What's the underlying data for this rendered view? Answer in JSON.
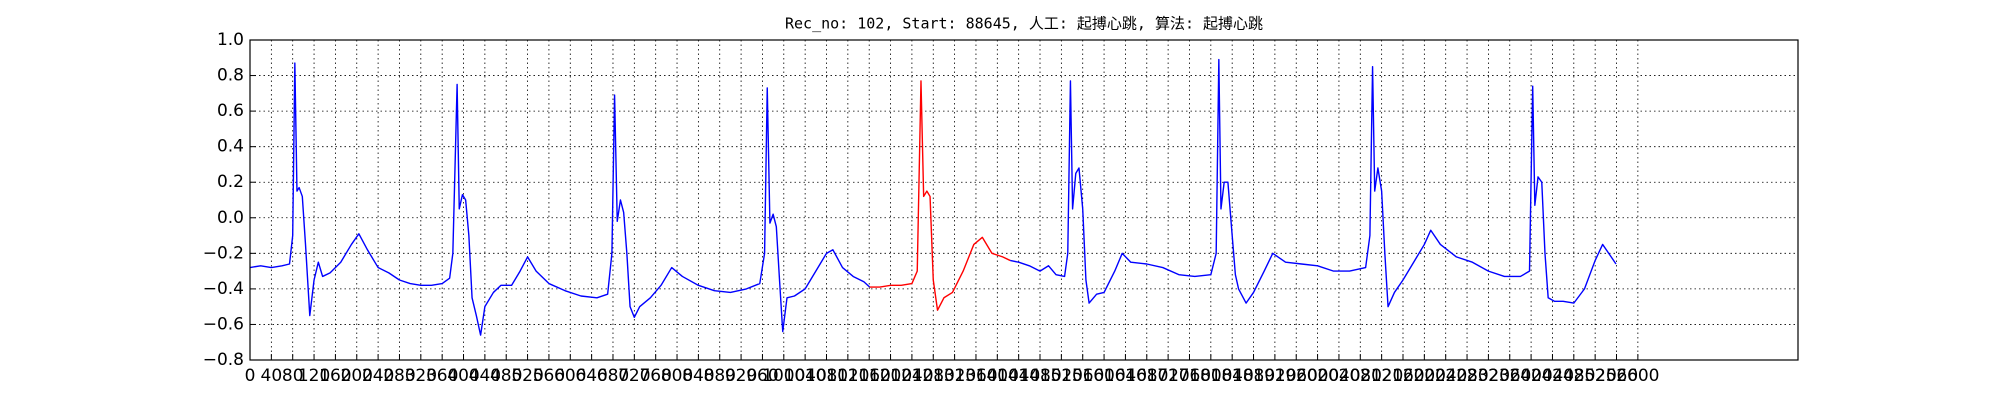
{
  "chart_data": {
    "type": "line",
    "title": "Rec_no: 102, Start: 88645, 人工: 起搏心跳, 算法: 起搏心跳",
    "xlim": [
      0,
      2900
    ],
    "ylim": [
      -0.8,
      1.0
    ],
    "xticks": [
      0,
      40,
      80,
      120,
      160,
      200,
      240,
      280,
      320,
      360,
      400,
      440,
      480,
      520,
      560,
      600,
      640,
      680,
      720,
      760,
      800,
      840,
      880,
      920,
      960,
      1000,
      1040,
      1080,
      1120,
      1160,
      1200,
      1240,
      1280,
      1320,
      1360,
      1400,
      1440,
      1480,
      1520,
      1560,
      1600,
      1640,
      1680,
      1720,
      1760,
      1800,
      1840,
      1880,
      1920,
      1960,
      2000,
      2040,
      2080,
      2120,
      2160,
      2200,
      2240,
      2280,
      2320,
      2360,
      2400,
      2440,
      2480,
      2520,
      2560,
      2600
    ],
    "yticks": [
      {
        "value": -0.8,
        "label": "−0.8"
      },
      {
        "value": -0.6,
        "label": "−0.6"
      },
      {
        "value": -0.4,
        "label": "−0.4"
      },
      {
        "value": -0.2,
        "label": "−0.2"
      },
      {
        "value": 0,
        "label": "0.0"
      },
      {
        "value": 0.2,
        "label": "0.2"
      },
      {
        "value": 0.4,
        "label": "0.4"
      },
      {
        "value": 0.6,
        "label": "0.6"
      },
      {
        "value": 0.8,
        "label": "0.8"
      },
      {
        "value": 1,
        "label": "1.0"
      }
    ],
    "grid": true,
    "series": [
      {
        "color": "#0000ff",
        "x": [
          0,
          20,
          40,
          60,
          74,
          80,
          84,
          88,
          92,
          98,
          104,
          112,
          120,
          128,
          136,
          150,
          170,
          190,
          204,
          220,
          240,
          260,
          280,
          300,
          320,
          340,
          360,
          374,
          380,
          388,
          392,
          398,
          404,
          410,
          416,
          424,
          432,
          440,
          456,
          470,
          490,
          506,
          520,
          536,
          560,
          590,
          620,
          650,
          670,
          678,
          683,
          688,
          694,
          700,
          706,
          712,
          720,
          730,
          750,
          770,
          790,
          810,
          840,
          870,
          900,
          930,
          955,
          964,
          969,
          974,
          980,
          986,
          992,
          998,
          1006,
          1020,
          1040,
          1060,
          1080,
          1092,
          1110,
          1130,
          1150,
          1161,
          1300,
          1424,
          1440,
          1460,
          1480,
          1496,
          1510,
          1526,
          1532,
          1537,
          1541,
          1547,
          1553,
          1560,
          1566,
          1572,
          1586,
          1600,
          1620,
          1634,
          1650,
          1680,
          1710,
          1740,
          1770,
          1800,
          1810,
          1815,
          1819,
          1825,
          1832,
          1840,
          1846,
          1852,
          1866,
          1880,
          1900,
          1916,
          1940,
          1970,
          2000,
          2030,
          2060,
          2090,
          2098,
          2103,
          2107,
          2113,
          2120,
          2126,
          2132,
          2144,
          2160,
          2180,
          2200,
          2212,
          2230,
          2260,
          2290,
          2320,
          2350,
          2380,
          2397,
          2403,
          2407,
          2413,
          2420,
          2426,
          2432,
          2444,
          2460,
          2480,
          2500,
          2520,
          2534,
          2550,
          2559
        ],
        "values": [
          -0.28,
          -0.27,
          -0.28,
          -0.27,
          -0.26,
          -0.1,
          0.87,
          0.15,
          0.17,
          0.12,
          -0.15,
          -0.55,
          -0.35,
          -0.25,
          -0.33,
          -0.31,
          -0.25,
          -0.15,
          -0.09,
          -0.18,
          -0.28,
          -0.31,
          -0.35,
          -0.37,
          -0.38,
          -0.38,
          -0.37,
          -0.34,
          -0.2,
          0.75,
          0.05,
          0.13,
          0.1,
          -0.1,
          -0.45,
          -0.55,
          -0.66,
          -0.5,
          -0.42,
          -0.38,
          -0.38,
          -0.3,
          -0.22,
          -0.3,
          -0.37,
          -0.41,
          -0.44,
          -0.45,
          -0.43,
          -0.2,
          0.69,
          -0.02,
          0.1,
          0.03,
          -0.2,
          -0.5,
          -0.56,
          -0.5,
          -0.45,
          -0.38,
          -0.28,
          -0.33,
          -0.38,
          -0.41,
          -0.42,
          -0.4,
          -0.37,
          -0.2,
          0.73,
          -0.03,
          0.02,
          -0.05,
          -0.35,
          -0.64,
          -0.45,
          -0.44,
          -0.4,
          -0.3,
          -0.2,
          -0.18,
          -0.28,
          -0.33,
          -0.36,
          -0.39,
          null,
          -0.24,
          -0.25,
          -0.27,
          -0.3,
          -0.27,
          -0.32,
          -0.33,
          -0.2,
          0.77,
          0.05,
          0.25,
          0.28,
          0.05,
          -0.35,
          -0.48,
          -0.43,
          -0.42,
          -0.3,
          -0.2,
          -0.25,
          -0.26,
          -0.28,
          -0.32,
          -0.33,
          -0.32,
          -0.2,
          0.89,
          0.05,
          0.2,
          0.2,
          -0.1,
          -0.32,
          -0.4,
          -0.48,
          -0.42,
          -0.3,
          -0.2,
          -0.25,
          -0.26,
          -0.27,
          -0.3,
          -0.3,
          -0.28,
          -0.1,
          0.85,
          0.15,
          0.28,
          0.15,
          -0.2,
          -0.5,
          -0.42,
          -0.35,
          -0.25,
          -0.15,
          -0.07,
          -0.15,
          -0.22,
          -0.25,
          -0.3,
          -0.33,
          -0.33,
          -0.3,
          0.74,
          0.07,
          0.23,
          0.2,
          -0.2,
          -0.45,
          -0.47,
          -0.47,
          -0.48,
          -0.4,
          -0.24,
          -0.15,
          -0.22,
          -0.26
        ]
      },
      {
        "color": "#ff0000",
        "x": [
          1161,
          1180,
          1200,
          1220,
          1240,
          1250,
          1257,
          1262,
          1268,
          1274,
          1280,
          1288,
          1300,
          1316,
          1336,
          1356,
          1372,
          1390,
          1410,
          1424
        ],
        "values": [
          -0.39,
          -0.39,
          -0.38,
          -0.38,
          -0.37,
          -0.3,
          0.77,
          0.12,
          0.15,
          0.12,
          -0.35,
          -0.52,
          -0.45,
          -0.42,
          -0.3,
          -0.15,
          -0.11,
          -0.2,
          -0.22,
          -0.24
        ]
      }
    ]
  }
}
